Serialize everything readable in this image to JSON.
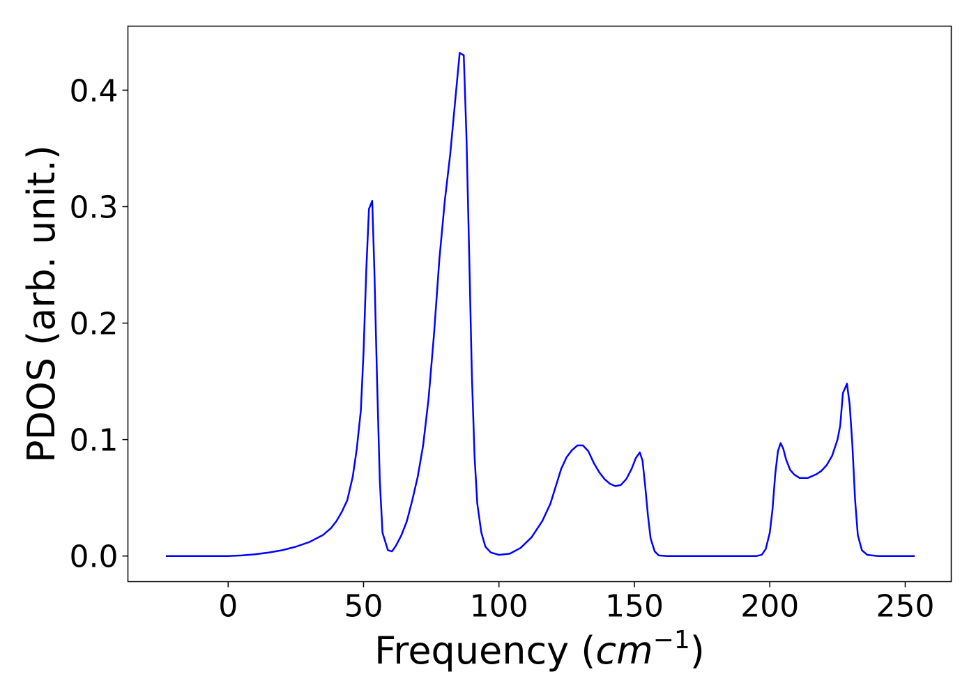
{
  "chart_data": {
    "type": "line",
    "xlabel": "Frequency (",
    "xlabel_unit": "cm",
    "xlabel_exp": "−1",
    "xlabel_close": ")",
    "ylabel": "PDOS (arb. unit.)",
    "xlim": [
      -37,
      267
    ],
    "ylim": [
      -0.022,
      0.455
    ],
    "x_ticks": [
      0,
      50,
      100,
      150,
      200,
      250
    ],
    "x_tick_labels": [
      "0",
      "50",
      "100",
      "150",
      "200",
      "250"
    ],
    "y_ticks": [
      0.0,
      0.1,
      0.2,
      0.3,
      0.4
    ],
    "y_tick_labels": [
      "0.0",
      "0.1",
      "0.2",
      "0.3",
      "0.4"
    ],
    "grid": false,
    "series": [
      {
        "color": "#0000ff",
        "points": [
          [
            -23,
            0.0
          ],
          [
            0,
            0.0
          ],
          [
            5,
            0.0005
          ],
          [
            10,
            0.0015
          ],
          [
            15,
            0.003
          ],
          [
            20,
            0.005
          ],
          [
            25,
            0.008
          ],
          [
            30,
            0.012
          ],
          [
            35,
            0.018
          ],
          [
            38,
            0.024
          ],
          [
            40,
            0.03
          ],
          [
            42,
            0.038
          ],
          [
            44,
            0.048
          ],
          [
            46,
            0.068
          ],
          [
            47.5,
            0.092
          ],
          [
            49,
            0.125
          ],
          [
            50,
            0.175
          ],
          [
            51,
            0.245
          ],
          [
            52,
            0.298
          ],
          [
            53.2,
            0.305
          ],
          [
            54,
            0.245
          ],
          [
            55,
            0.15
          ],
          [
            56,
            0.065
          ],
          [
            57,
            0.02
          ],
          [
            59,
            0.005
          ],
          [
            60.5,
            0.004
          ],
          [
            62,
            0.009
          ],
          [
            64,
            0.018
          ],
          [
            66,
            0.03
          ],
          [
            68,
            0.048
          ],
          [
            70,
            0.068
          ],
          [
            72,
            0.095
          ],
          [
            74,
            0.135
          ],
          [
            76,
            0.19
          ],
          [
            78,
            0.255
          ],
          [
            80,
            0.305
          ],
          [
            82,
            0.345
          ],
          [
            84,
            0.395
          ],
          [
            85.5,
            0.432
          ],
          [
            87,
            0.43
          ],
          [
            88,
            0.36
          ],
          [
            89,
            0.26
          ],
          [
            90,
            0.155
          ],
          [
            91,
            0.085
          ],
          [
            92,
            0.045
          ],
          [
            93.5,
            0.02
          ],
          [
            95,
            0.008
          ],
          [
            97,
            0.003
          ],
          [
            100,
            0.001
          ],
          [
            104,
            0.002
          ],
          [
            108,
            0.007
          ],
          [
            112,
            0.016
          ],
          [
            116,
            0.03
          ],
          [
            119,
            0.045
          ],
          [
            121,
            0.06
          ],
          [
            123,
            0.075
          ],
          [
            125,
            0.085
          ],
          [
            127,
            0.091
          ],
          [
            129,
            0.095
          ],
          [
            131,
            0.095
          ],
          [
            133,
            0.09
          ],
          [
            135,
            0.08
          ],
          [
            137,
            0.072
          ],
          [
            139,
            0.066
          ],
          [
            141,
            0.062
          ],
          [
            143,
            0.06
          ],
          [
            145,
            0.061
          ],
          [
            147,
            0.066
          ],
          [
            149,
            0.075
          ],
          [
            150.5,
            0.084
          ],
          [
            152,
            0.089
          ],
          [
            153,
            0.082
          ],
          [
            154,
            0.06
          ],
          [
            155,
            0.035
          ],
          [
            156,
            0.015
          ],
          [
            157.5,
            0.004
          ],
          [
            159,
            0.0005
          ],
          [
            162,
            0.0
          ],
          [
            195,
            0.0
          ],
          [
            197,
            0.001
          ],
          [
            198.5,
            0.006
          ],
          [
            200,
            0.02
          ],
          [
            201,
            0.04
          ],
          [
            202,
            0.07
          ],
          [
            203,
            0.09
          ],
          [
            204,
            0.097
          ],
          [
            205,
            0.092
          ],
          [
            206,
            0.083
          ],
          [
            207.5,
            0.074
          ],
          [
            209,
            0.07
          ],
          [
            211,
            0.067
          ],
          [
            214,
            0.067
          ],
          [
            217,
            0.07
          ],
          [
            219,
            0.073
          ],
          [
            221,
            0.078
          ],
          [
            223,
            0.086
          ],
          [
            225,
            0.1
          ],
          [
            226,
            0.112
          ],
          [
            227,
            0.14
          ],
          [
            228.5,
            0.148
          ],
          [
            229.5,
            0.13
          ],
          [
            230.5,
            0.095
          ],
          [
            231.5,
            0.048
          ],
          [
            232.5,
            0.018
          ],
          [
            234,
            0.005
          ],
          [
            236,
            0.001
          ],
          [
            240,
            0.0
          ],
          [
            253.5,
            0.0
          ]
        ]
      }
    ]
  }
}
